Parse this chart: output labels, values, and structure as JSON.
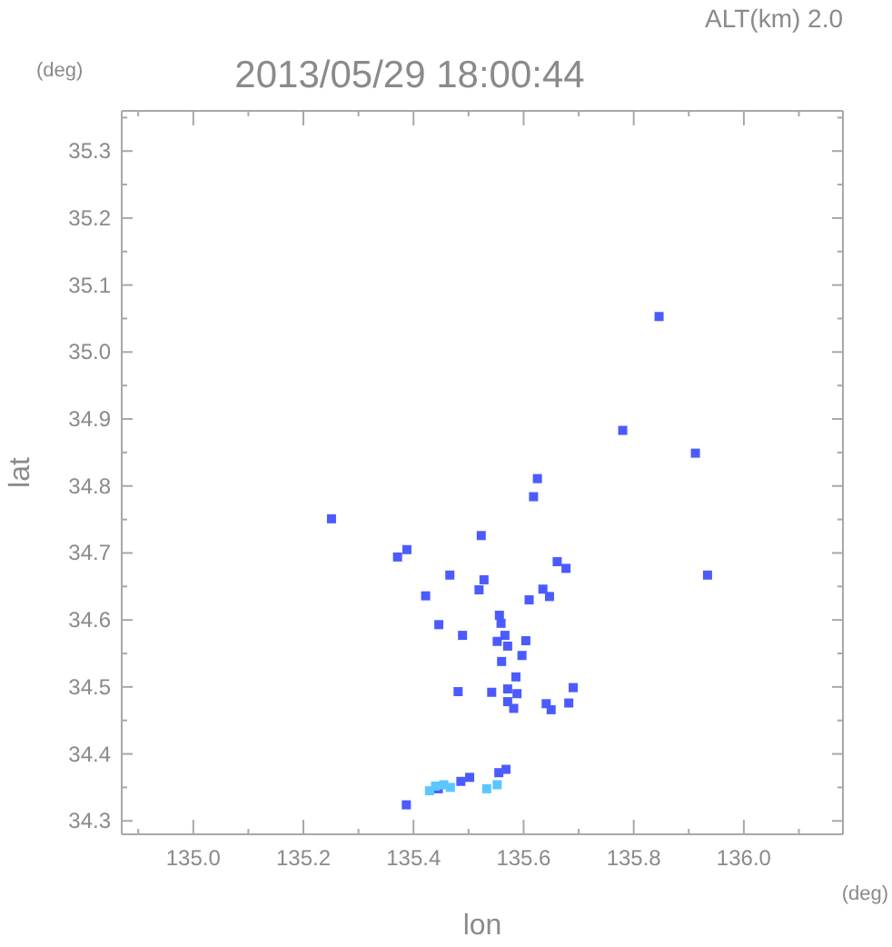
{
  "chart_data": {
    "type": "scatter",
    "title": "2013/05/29 18:00:44",
    "xlabel": "lon",
    "ylabel": "lat",
    "annotations": [
      "ALT(km) 2.0",
      "(deg)",
      "(deg)"
    ],
    "marker": "square",
    "xlim": [
      134.87,
      136.18
    ],
    "ylim": [
      34.28,
      35.36
    ],
    "xticks": [
      {
        "value": 134.9,
        "label": null
      },
      {
        "value": 135.0,
        "label": "135.0"
      },
      {
        "value": 135.1,
        "label": null
      },
      135.2,
      {
        "value": 135.3,
        "label": null
      },
      135.4,
      {
        "value": 135.5,
        "label": null
      },
      135.6,
      {
        "value": 135.7,
        "label": null
      },
      135.8,
      {
        "value": 135.9,
        "label": null
      },
      {
        "value": 136.0,
        "label": "136.0"
      },
      {
        "value": 136.1,
        "label": null
      }
    ],
    "yticks": [
      34.3,
      {
        "value": 34.35,
        "label": null
      },
      34.4,
      {
        "value": 34.45,
        "label": null
      },
      34.5,
      {
        "value": 34.55,
        "label": null
      },
      34.6,
      {
        "value": 34.65,
        "label": null
      },
      34.7,
      {
        "value": 34.75,
        "label": null
      },
      34.8,
      {
        "value": 34.85,
        "label": null
      },
      34.9,
      {
        "value": 34.95,
        "label": null
      },
      {
        "value": 35.0,
        "label": "35.0"
      },
      {
        "value": 35.05,
        "label": null
      },
      35.1,
      {
        "value": 35.15,
        "label": null
      },
      35.2,
      {
        "value": 35.25,
        "label": null
      },
      35.3,
      {
        "value": 35.35,
        "label": null
      }
    ],
    "series": [
      {
        "color": "#4b5bff",
        "x": [
          135.846,
          135.78,
          135.912,
          135.625,
          135.618,
          135.251,
          135.523,
          135.388,
          135.371,
          135.466,
          135.661,
          135.677,
          135.934,
          135.528,
          135.519,
          135.422,
          135.61,
          135.635,
          135.647,
          135.556,
          135.489,
          135.446,
          135.559,
          135.566,
          135.552,
          135.571,
          135.604,
          135.597,
          135.56,
          135.586,
          135.481,
          135.542,
          135.571,
          135.571,
          135.582,
          135.588,
          135.641,
          135.65,
          135.682,
          135.69,
          135.568,
          135.555,
          135.502,
          135.486,
          135.445,
          135.387
        ],
        "values": [
          35.053,
          34.883,
          34.849,
          34.811,
          34.784,
          34.751,
          34.726,
          34.705,
          34.694,
          34.667,
          34.687,
          34.677,
          34.667,
          34.66,
          34.645,
          34.636,
          34.63,
          34.646,
          34.635,
          34.607,
          34.577,
          34.593,
          34.595,
          34.577,
          34.568,
          34.561,
          34.569,
          34.547,
          34.538,
          34.515,
          34.493,
          34.492,
          34.497,
          34.478,
          34.468,
          34.49,
          34.475,
          34.466,
          34.476,
          34.499,
          34.377,
          34.372,
          34.365,
          34.359,
          34.348,
          34.324
        ]
      },
      {
        "color": "#5ac8ff",
        "x": [
          135.429,
          135.44,
          135.455,
          135.467,
          135.533,
          135.552
        ],
        "values": [
          34.345,
          34.352,
          34.354,
          34.35,
          34.348,
          34.354
        ]
      }
    ]
  }
}
